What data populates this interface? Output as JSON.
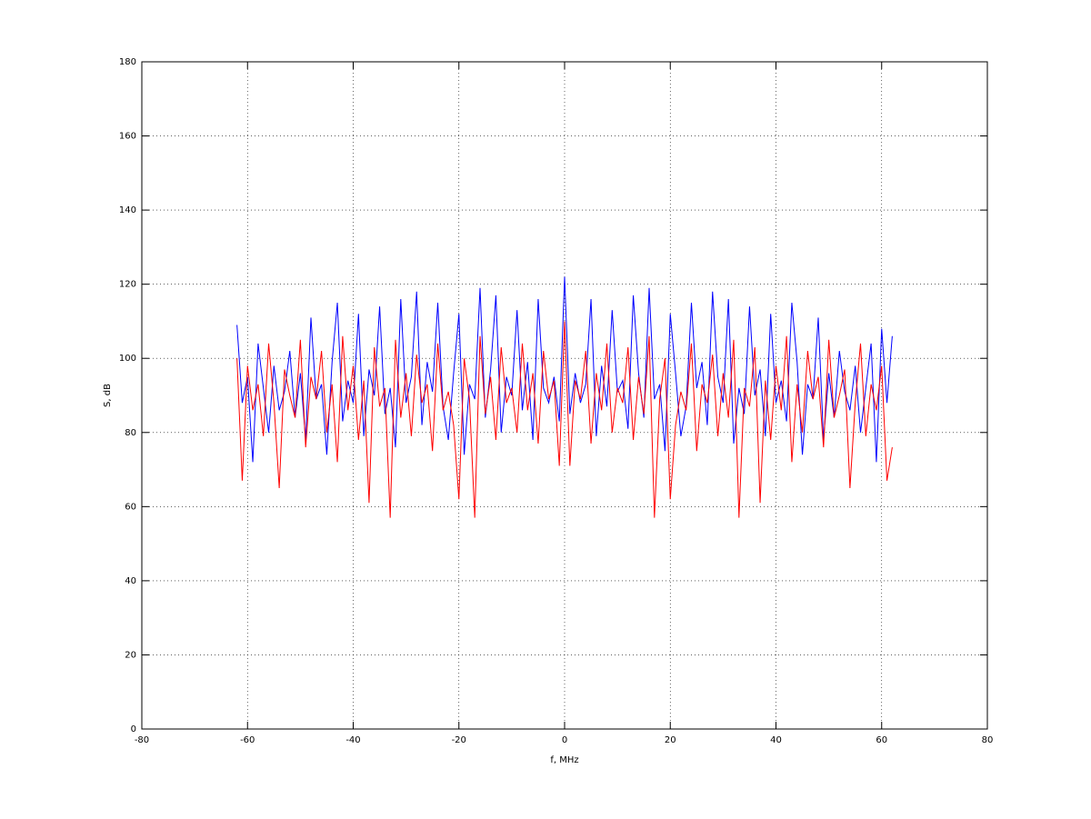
{
  "chart_data": {
    "type": "line",
    "xlabel": "f, MHz",
    "ylabel": "S, dB",
    "x": [
      -62,
      -61,
      -60,
      -59,
      -58,
      -57,
      -56,
      -55,
      -54,
      -53,
      -52,
      -51,
      -50,
      -49,
      -48,
      -47,
      -46,
      -45,
      -44,
      -43,
      -42,
      -41,
      -40,
      -39,
      -38,
      -37,
      -36,
      -35,
      -34,
      -33,
      -32,
      -31,
      -30,
      -29,
      -28,
      -27,
      -26,
      -25,
      -24,
      -23,
      -22,
      -21,
      -20,
      -19,
      -18,
      -17,
      -16,
      -15,
      -14,
      -13,
      -12,
      -11,
      -10,
      -9,
      -8,
      -7,
      -6,
      -5,
      -4,
      -3,
      -2,
      -1,
      0,
      1,
      2,
      3,
      4,
      5,
      6,
      7,
      8,
      9,
      10,
      11,
      12,
      13,
      14,
      15,
      16,
      17,
      18,
      19,
      20,
      21,
      22,
      23,
      24,
      25,
      26,
      27,
      28,
      29,
      30,
      31,
      32,
      33,
      34,
      35,
      36,
      37,
      38,
      39,
      40,
      41,
      42,
      43,
      44,
      45,
      46,
      47,
      48,
      49,
      50,
      51,
      52,
      53,
      54,
      55,
      56,
      57,
      58,
      59,
      60,
      61,
      62
    ],
    "series": [
      {
        "color": "#0000ff",
        "values": [
          109,
          88,
          95,
          72,
          104,
          92,
          80,
          98,
          86,
          91,
          102,
          84,
          96,
          78,
          111,
          89,
          93,
          74,
          99,
          115,
          83,
          94,
          88,
          112,
          79,
          97,
          90,
          114,
          85,
          92,
          76,
          116,
          88,
          95,
          118,
          82,
          99,
          91,
          115,
          87,
          78,
          96,
          112,
          74,
          93,
          89,
          119,
          84,
          97,
          117,
          80,
          95,
          90,
          113,
          86,
          99,
          78,
          116,
          92,
          88,
          95,
          83,
          122,
          85,
          96,
          88,
          93,
          116,
          79,
          98,
          87,
          113,
          91,
          94,
          81,
          117,
          96,
          84,
          119,
          89,
          93,
          75,
          112,
          96,
          79,
          87,
          115,
          92,
          99,
          82,
          118,
          95,
          88,
          116,
          77,
          92,
          85,
          114,
          90,
          97,
          79,
          112,
          88,
          94,
          83,
          115,
          99,
          74,
          93,
          89,
          111,
          78,
          96,
          84,
          102,
          91,
          86,
          98,
          80,
          92,
          104,
          72,
          108,
          88,
          106
        ]
      },
      {
        "color": "#ff0000",
        "values": [
          100,
          67,
          98,
          86,
          93,
          79,
          104,
          88,
          65,
          97,
          90,
          84,
          105,
          76,
          95,
          89,
          102,
          80,
          93,
          72,
          106,
          86,
          98,
          78,
          94,
          61,
          103,
          87,
          92,
          57,
          105,
          84,
          96,
          79,
          101,
          88,
          93,
          75,
          104,
          86,
          91,
          82,
          62,
          100,
          89,
          57,
          106,
          85,
          95,
          78,
          103,
          88,
          92,
          80,
          104,
          86,
          96,
          77,
          102,
          89,
          94,
          71,
          110,
          71,
          94,
          89,
          102,
          77,
          96,
          86,
          104,
          80,
          92,
          88,
          103,
          78,
          95,
          85,
          106,
          57,
          89,
          100,
          62,
          82,
          91,
          86,
          104,
          75,
          93,
          88,
          101,
          79,
          96,
          84,
          105,
          57,
          92,
          87,
          103,
          61,
          94,
          78,
          98,
          86,
          106,
          72,
          93,
          80,
          102,
          89,
          95,
          76,
          105,
          84,
          90,
          97,
          65,
          88,
          104,
          79,
          93,
          86,
          98,
          67,
          76
        ]
      }
    ],
    "xlim": [
      -80,
      80
    ],
    "ylim": [
      0,
      180
    ],
    "xticks": [
      -80,
      -60,
      -40,
      -20,
      0,
      20,
      40,
      60,
      80
    ],
    "yticks": [
      0,
      20,
      40,
      60,
      80,
      100,
      120,
      140,
      160,
      180
    ],
    "grid": true
  }
}
